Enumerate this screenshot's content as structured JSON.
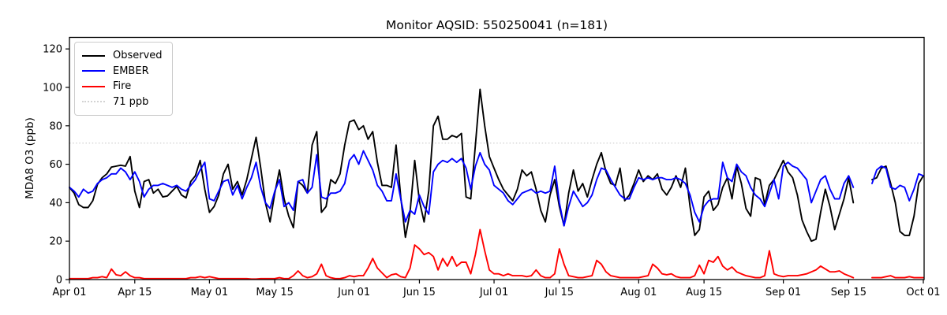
{
  "title": "Monitor AQSID: 550250041 (n=181)",
  "chart_data": {
    "type": "line",
    "title": "Monitor AQSID: 550250041 (n=181)",
    "ylabel": "MDA8 O3 (ppb)",
    "xlabel": "",
    "grid": false,
    "legend_position": "upper left",
    "ylim": [
      0,
      126
    ],
    "y_ticks": [
      0,
      20,
      40,
      60,
      80,
      100,
      120
    ],
    "x_start": "Apr 01",
    "x_end": "Oct 01",
    "days_total": 183,
    "x_tick_days": [
      0,
      14,
      30,
      44,
      61,
      75,
      91,
      105,
      122,
      136,
      153,
      167,
      183
    ],
    "x_tick_labels": [
      "Apr 01",
      "Apr 15",
      "May 01",
      "May 15",
      "Jun 01",
      "Jun 15",
      "Jul 01",
      "Jul 15",
      "Aug 01",
      "Aug 15",
      "Sep 01",
      "Sep 15",
      "Oct 01"
    ],
    "threshold": {
      "value": 71,
      "label": "71 ppb",
      "color": "#d3d3d3",
      "style": "dotted"
    },
    "legend": [
      {
        "label": "Observed",
        "color": "#000000",
        "style": "solid"
      },
      {
        "label": "EMBER",
        "color": "#0000ff",
        "style": "solid"
      },
      {
        "label": "Fire",
        "color": "#ff0000",
        "style": "solid"
      },
      {
        "label": "71 ppb",
        "color": "#d3d3d3",
        "style": "dotted"
      }
    ],
    "series": [
      {
        "name": "Observed",
        "color": "#000000",
        "values": [
          48,
          45,
          39,
          37.5,
          37.5,
          41,
          49.5,
          53,
          55,
          58.5,
          59,
          59.5,
          59,
          64,
          46,
          37.5,
          51,
          52,
          45,
          47,
          43,
          43.5,
          46,
          48.5,
          44,
          42.5,
          51,
          54,
          62,
          47,
          35,
          38,
          44,
          55,
          60,
          47,
          51,
          44,
          52,
          63,
          74,
          58,
          40,
          30,
          45,
          57,
          42,
          33,
          27,
          51,
          49,
          45,
          70,
          77,
          35,
          38,
          52,
          50,
          55,
          70,
          82,
          83,
          78,
          80,
          73,
          77,
          61,
          49,
          49,
          48,
          70,
          43,
          22,
          35,
          62,
          41,
          30,
          46,
          80,
          85,
          73,
          73,
          75,
          74,
          76,
          43,
          42,
          70,
          99,
          80,
          64,
          58,
          52,
          47,
          44,
          41,
          47,
          57,
          54,
          56,
          47,
          36,
          30,
          44,
          52,
          38,
          28,
          45,
          57,
          46,
          50,
          43,
          52,
          60,
          66,
          56,
          50,
          49,
          58,
          41,
          44,
          50,
          57,
          51,
          54,
          52,
          55,
          47,
          44,
          48,
          54,
          48,
          58,
          38,
          23,
          26,
          43,
          46,
          36,
          39,
          48,
          53,
          42,
          59,
          50,
          37,
          33,
          53,
          52,
          39,
          49,
          52,
          57,
          62,
          56,
          53,
          44,
          31,
          25,
          20,
          21,
          35,
          47,
          38,
          26,
          34,
          42,
          53,
          40,
          null,
          null,
          null,
          52,
          53,
          58,
          59,
          50,
          40,
          25,
          23,
          23,
          33,
          50,
          54
        ]
      },
      {
        "name": "EMBER",
        "color": "#0000ff",
        "values": [
          48,
          46,
          43,
          47,
          45,
          46,
          50,
          52,
          53,
          55,
          55,
          58,
          56,
          52,
          56,
          51,
          43,
          47,
          49,
          49,
          50,
          49,
          48,
          49,
          47,
          46,
          49,
          52,
          57,
          61,
          42,
          41,
          46,
          51,
          52,
          44,
          49,
          42,
          48,
          53,
          61,
          48,
          40,
          37,
          46,
          52,
          38,
          40,
          36,
          51,
          52,
          45,
          48,
          65,
          43,
          42,
          45,
          45,
          46,
          50,
          62,
          65,
          60,
          67,
          62,
          57,
          49,
          46,
          41,
          41,
          55,
          42,
          30,
          36,
          34,
          44,
          38,
          34,
          56,
          60,
          62,
          61,
          63,
          61,
          63,
          58,
          47,
          59,
          66,
          60,
          57,
          49,
          47,
          45,
          41,
          39,
          42,
          45,
          46,
          47,
          45,
          46,
          45,
          46,
          59,
          40,
          28,
          38,
          46,
          42,
          38,
          40,
          44,
          52,
          58,
          57,
          52,
          48,
          44,
          42,
          42,
          48,
          53,
          52,
          53,
          52,
          53,
          53,
          52,
          52,
          53,
          52,
          50,
          44,
          35,
          30,
          38,
          41,
          42,
          42,
          61,
          53,
          51,
          60,
          56,
          54,
          48,
          44,
          42,
          38,
          45,
          52,
          42,
          59,
          61,
          59,
          58,
          55,
          52,
          40,
          46,
          52,
          54,
          47,
          42,
          42,
          50,
          54,
          48,
          null,
          null,
          null,
          50,
          57,
          59,
          58,
          48,
          47,
          49,
          48,
          41,
          47,
          55,
          54
        ]
      },
      {
        "name": "Fire",
        "color": "#ff0000",
        "values": [
          0.5,
          0.5,
          0.5,
          0.5,
          0.5,
          1,
          1,
          1.5,
          1,
          5.5,
          2.5,
          2,
          4,
          2,
          1,
          1,
          0.5,
          0.5,
          0.5,
          0.5,
          0.5,
          0.5,
          0.5,
          0.5,
          0.5,
          0.5,
          1,
          1,
          1.5,
          1,
          1.5,
          1,
          0.5,
          0.5,
          0.5,
          0.5,
          0.5,
          0.5,
          0.5,
          0.3,
          0.3,
          0.5,
          0.5,
          0.5,
          0.5,
          1,
          0.5,
          0.5,
          2,
          4.5,
          2,
          1,
          1.5,
          3,
          8,
          2,
          1,
          0.5,
          0.5,
          1,
          2,
          1.5,
          2,
          2,
          6,
          11,
          6,
          3.5,
          1,
          2.5,
          3,
          1.5,
          1,
          6,
          18,
          16,
          13,
          14,
          12,
          5,
          11,
          7,
          12,
          7,
          9,
          9,
          3,
          13,
          26,
          15,
          5,
          3,
          3,
          2,
          3,
          2,
          2,
          2,
          1.5,
          2,
          5,
          2,
          1,
          1,
          3,
          16,
          8,
          2,
          1.5,
          1,
          1,
          1.5,
          2,
          10,
          8,
          4,
          2,
          1.5,
          1,
          1,
          1,
          1,
          1,
          1.5,
          2,
          8,
          6,
          3,
          2.5,
          3,
          1.5,
          1,
          1,
          1,
          2,
          7.5,
          3,
          10,
          9,
          12,
          7,
          5,
          6.5,
          4,
          3,
          2,
          1.5,
          1,
          1,
          2,
          15,
          3,
          2,
          1.5,
          2,
          2,
          2,
          2.5,
          3,
          4,
          5,
          7,
          5.5,
          4,
          4,
          4.5,
          3,
          2,
          1,
          null,
          null,
          null,
          1,
          1,
          1,
          1.5,
          2,
          1,
          1,
          1,
          1.5,
          1,
          1,
          1
        ]
      }
    ]
  }
}
